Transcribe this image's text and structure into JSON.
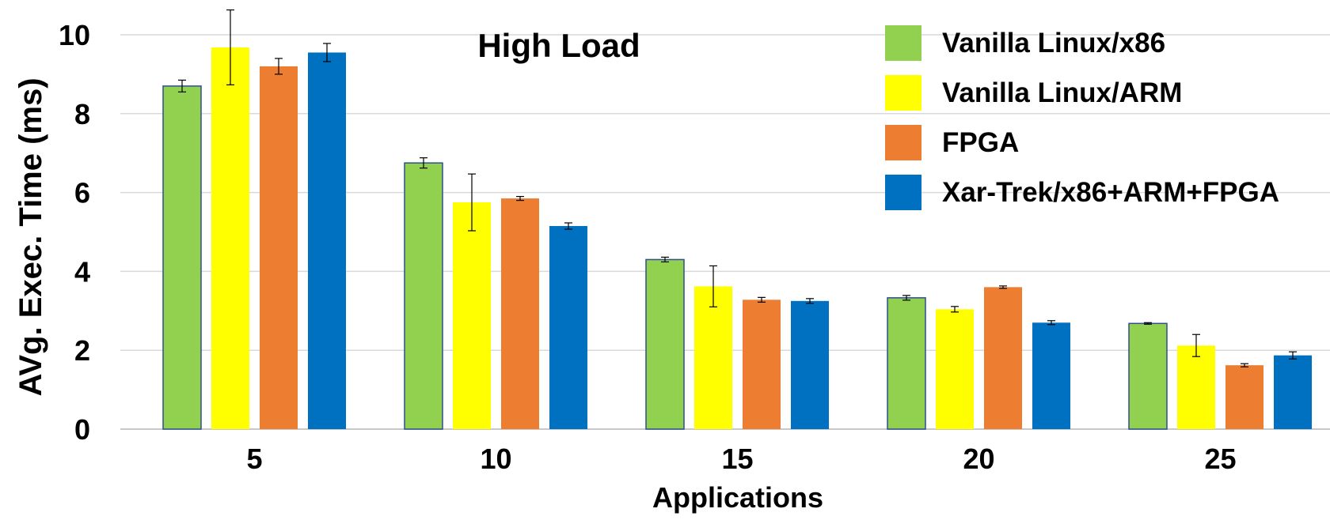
{
  "chart_data": {
    "type": "bar",
    "title": "High Load",
    "xlabel": "Applications",
    "ylabel": "AVg. Exec. Time (ms)",
    "ylim": [
      0,
      10
    ],
    "yticks": [
      0,
      2,
      4,
      6,
      8,
      10
    ],
    "grid": true,
    "legend_position": "top-right",
    "categories": [
      "5",
      "10",
      "15",
      "20",
      "25"
    ],
    "series": [
      {
        "name": "Vanilla Linux/x86",
        "color": "#92D050",
        "values": [
          8.7,
          6.75,
          4.3,
          3.33,
          2.68
        ],
        "errors": [
          0.15,
          0.13,
          0.06,
          0.06,
          0.02
        ]
      },
      {
        "name": "Vanilla Linux/ARM",
        "color": "#FFFF00",
        "values": [
          9.68,
          5.75,
          3.62,
          3.04,
          2.12
        ],
        "errors": [
          0.95,
          0.72,
          0.52,
          0.07,
          0.28
        ]
      },
      {
        "name": "FPGA",
        "color": "#ED7D31",
        "values": [
          9.2,
          5.85,
          3.28,
          3.6,
          1.62
        ],
        "errors": [
          0.2,
          0.05,
          0.06,
          0.03,
          0.04
        ]
      },
      {
        "name": "Xar-Trek/x86+ARM+FPGA",
        "color": "#0070C0",
        "values": [
          9.55,
          5.15,
          3.25,
          2.7,
          1.87
        ],
        "errors": [
          0.23,
          0.08,
          0.06,
          0.05,
          0.09
        ]
      }
    ]
  }
}
